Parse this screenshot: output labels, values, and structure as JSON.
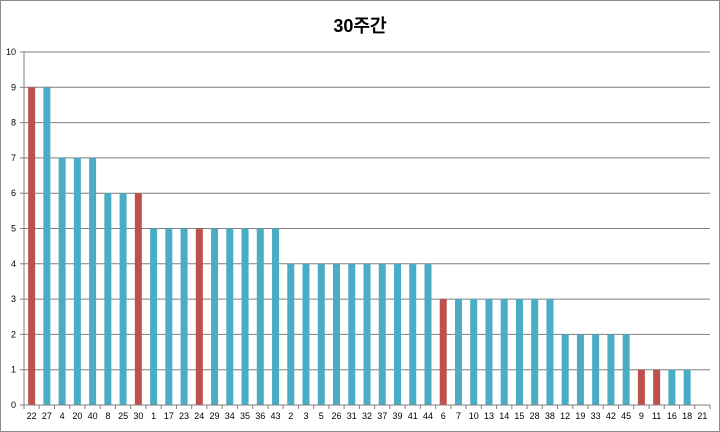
{
  "chart_data": {
    "type": "bar",
    "title": "30주간",
    "xlabel": "",
    "ylabel": "",
    "ylim": [
      0,
      10
    ],
    "yticks": [
      0,
      1,
      2,
      3,
      4,
      5,
      6,
      7,
      8,
      9,
      10
    ],
    "grid": true,
    "categories": [
      "22",
      "27",
      "4",
      "20",
      "40",
      "8",
      "25",
      "30",
      "1",
      "17",
      "23",
      "24",
      "29",
      "34",
      "35",
      "36",
      "43",
      "2",
      "3",
      "5",
      "26",
      "31",
      "32",
      "37",
      "39",
      "41",
      "44",
      "6",
      "7",
      "10",
      "13",
      "14",
      "15",
      "28",
      "38",
      "12",
      "19",
      "33",
      "42",
      "45",
      "9",
      "11",
      "16",
      "18",
      "21"
    ],
    "values": [
      9,
      9,
      7,
      7,
      7,
      6,
      6,
      6,
      5,
      5,
      5,
      5,
      5,
      5,
      5,
      5,
      5,
      4,
      4,
      4,
      4,
      4,
      4,
      4,
      4,
      4,
      4,
      3,
      3,
      3,
      3,
      3,
      3,
      3,
      3,
      2,
      2,
      2,
      2,
      2,
      1,
      1,
      1,
      1,
      0
    ],
    "highlighted": [
      "22",
      "30",
      "24",
      "6",
      "9",
      "11"
    ],
    "colors": {
      "bar": "#4bacc6",
      "highlight": "#c0504d",
      "grid": "#7f7f7f",
      "axis": "#7f7f7f"
    }
  }
}
